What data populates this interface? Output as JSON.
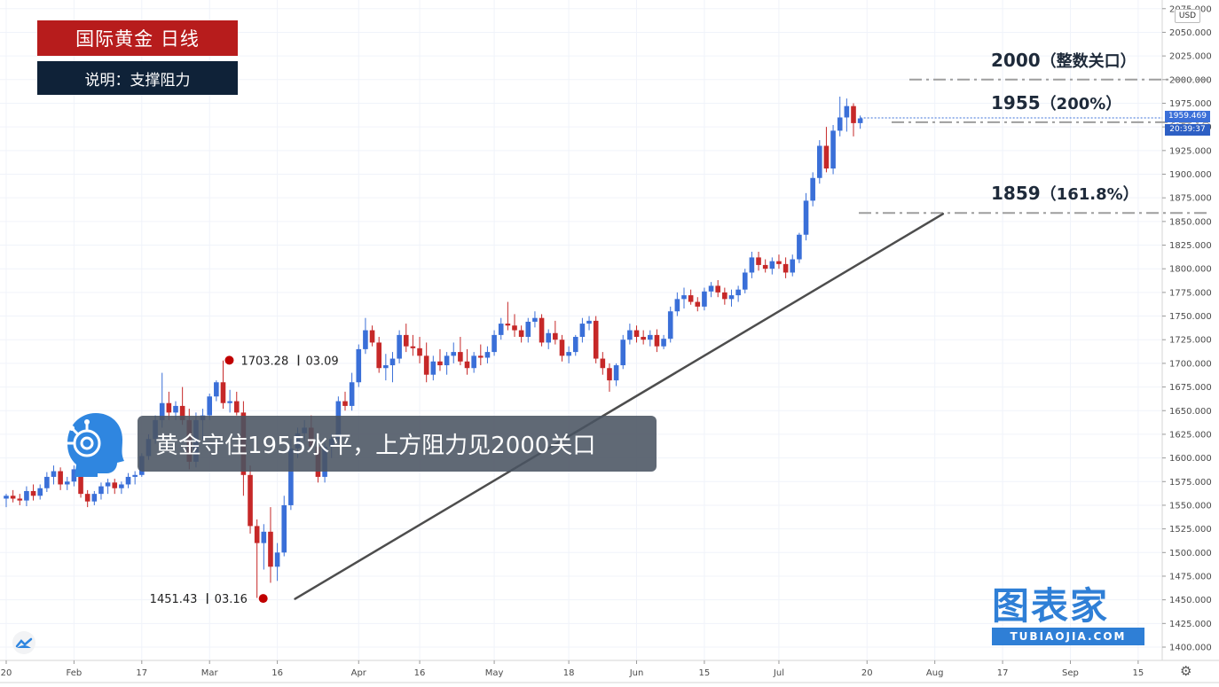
{
  "header": {
    "title": "国际黄金 日线",
    "subtitle": "说明：支撑阻力"
  },
  "caption": "黄金守住1955水平，上方阻力见2000关口",
  "watermark": {
    "brand": "图表家",
    "domain": "TUBIAOJIA.COM"
  },
  "icons": {
    "avatar": "ai-head-icon",
    "platform_logo": "tradingview-logo-icon",
    "settings": "gear-icon"
  },
  "colors": {
    "up": "#3a6fd8",
    "down": "#c62828",
    "trendline": "#4d4d4d",
    "level_line": "#9e9e9e",
    "title_bg": "#b71c1c",
    "subtitle_bg": "#0f2238",
    "price_tag_bg": "#3a6fd8",
    "watermark": "#2f7fd6"
  },
  "chart_data": {
    "type": "candlestick",
    "instrument": "国际黄金",
    "timeframe": "日线",
    "currency": "USD",
    "ylim": [
      1386,
      2080
    ],
    "y_ticks": [
      1400,
      1425,
      1450,
      1475,
      1500,
      1525,
      1550,
      1575,
      1600,
      1625,
      1650,
      1675,
      1700,
      1725,
      1750,
      1775,
      1800,
      1825,
      1850,
      1875,
      1900,
      1925,
      1950,
      1975,
      2000,
      2025,
      2050,
      2075
    ],
    "x_ticks": [
      {
        "label": "20",
        "bar": 0
      },
      {
        "label": "Feb",
        "bar": 10
      },
      {
        "label": "17",
        "bar": 20
      },
      {
        "label": "Mar",
        "bar": 30
      },
      {
        "label": "16",
        "bar": 40
      },
      {
        "label": "Apr",
        "bar": 52
      },
      {
        "label": "16",
        "bar": 61
      },
      {
        "label": "May",
        "bar": 72
      },
      {
        "label": "18",
        "bar": 83
      },
      {
        "label": "Jun",
        "bar": 93
      },
      {
        "label": "15",
        "bar": 103
      },
      {
        "label": "Jul",
        "bar": 114
      },
      {
        "label": "20",
        "bar": 127
      },
      {
        "label": "Aug",
        "bar": 137
      },
      {
        "label": "17",
        "bar": 147
      },
      {
        "label": "Sep",
        "bar": 157
      },
      {
        "label": "15",
        "bar": 167
      }
    ],
    "candles": [
      [
        1557,
        1562,
        1548,
        1560
      ],
      [
        1560,
        1566,
        1553,
        1557
      ],
      [
        1557,
        1562,
        1550,
        1555
      ],
      [
        1555,
        1570,
        1549,
        1565
      ],
      [
        1565,
        1572,
        1555,
        1560
      ],
      [
        1560,
        1572,
        1556,
        1568
      ],
      [
        1568,
        1585,
        1564,
        1580
      ],
      [
        1580,
        1592,
        1572,
        1586
      ],
      [
        1586,
        1590,
        1566,
        1572
      ],
      [
        1572,
        1580,
        1566,
        1575
      ],
      [
        1575,
        1592,
        1570,
        1588
      ],
      [
        1588,
        1592,
        1558,
        1562
      ],
      [
        1562,
        1566,
        1548,
        1554
      ],
      [
        1554,
        1565,
        1550,
        1562
      ],
      [
        1562,
        1574,
        1556,
        1570
      ],
      [
        1570,
        1578,
        1562,
        1574
      ],
      [
        1574,
        1578,
        1562,
        1568
      ],
      [
        1568,
        1575,
        1562,
        1572
      ],
      [
        1572,
        1584,
        1568,
        1580
      ],
      [
        1580,
        1586,
        1572,
        1582
      ],
      [
        1582,
        1605,
        1580,
        1602
      ],
      [
        1602,
        1625,
        1598,
        1620
      ],
      [
        1620,
        1645,
        1615,
        1640
      ],
      [
        1640,
        1690,
        1632,
        1658
      ],
      [
        1658,
        1670,
        1640,
        1648
      ],
      [
        1648,
        1660,
        1640,
        1655
      ],
      [
        1655,
        1675,
        1635,
        1640
      ],
      [
        1640,
        1652,
        1588,
        1596
      ],
      [
        1596,
        1648,
        1590,
        1640
      ],
      [
        1640,
        1652,
        1620,
        1645
      ],
      [
        1645,
        1668,
        1640,
        1665
      ],
      [
        1665,
        1682,
        1660,
        1680
      ],
      [
        1680,
        1703,
        1652,
        1658
      ],
      [
        1658,
        1672,
        1648,
        1660
      ],
      [
        1660,
        1670,
        1645,
        1648
      ],
      [
        1648,
        1660,
        1560,
        1582
      ],
      [
        1582,
        1592,
        1520,
        1528
      ],
      [
        1528,
        1535,
        1452,
        1510
      ],
      [
        1510,
        1530,
        1482,
        1522
      ],
      [
        1522,
        1548,
        1468,
        1485
      ],
      [
        1485,
        1510,
        1470,
        1500
      ],
      [
        1500,
        1560,
        1496,
        1550
      ],
      [
        1550,
        1620,
        1545,
        1610
      ],
      [
        1610,
        1632,
        1600,
        1626
      ],
      [
        1626,
        1640,
        1618,
        1632
      ],
      [
        1632,
        1645,
        1608,
        1612
      ],
      [
        1612,
        1625,
        1574,
        1580
      ],
      [
        1580,
        1616,
        1574,
        1612
      ],
      [
        1612,
        1625,
        1600,
        1620
      ],
      [
        1620,
        1665,
        1615,
        1660
      ],
      [
        1660,
        1670,
        1650,
        1655
      ],
      [
        1655,
        1690,
        1650,
        1680
      ],
      [
        1680,
        1720,
        1675,
        1715
      ],
      [
        1715,
        1748,
        1710,
        1735
      ],
      [
        1735,
        1740,
        1718,
        1722
      ],
      [
        1722,
        1728,
        1690,
        1695
      ],
      [
        1695,
        1710,
        1682,
        1698
      ],
      [
        1698,
        1712,
        1680,
        1705
      ],
      [
        1705,
        1735,
        1700,
        1730
      ],
      [
        1730,
        1742,
        1712,
        1718
      ],
      [
        1718,
        1730,
        1708,
        1716
      ],
      [
        1716,
        1728,
        1700,
        1708
      ],
      [
        1708,
        1722,
        1680,
        1688
      ],
      [
        1688,
        1708,
        1682,
        1702
      ],
      [
        1702,
        1715,
        1692,
        1698
      ],
      [
        1698,
        1712,
        1688,
        1708
      ],
      [
        1708,
        1722,
        1700,
        1712
      ],
      [
        1712,
        1728,
        1698,
        1702
      ],
      [
        1702,
        1715,
        1688,
        1695
      ],
      [
        1695,
        1712,
        1690,
        1708
      ],
      [
        1708,
        1720,
        1698,
        1706
      ],
      [
        1706,
        1718,
        1700,
        1712
      ],
      [
        1712,
        1735,
        1708,
        1730
      ],
      [
        1730,
        1748,
        1725,
        1742
      ],
      [
        1742,
        1765,
        1735,
        1740
      ],
      [
        1740,
        1752,
        1728,
        1735
      ],
      [
        1735,
        1740,
        1722,
        1728
      ],
      [
        1728,
        1748,
        1722,
        1744
      ],
      [
        1744,
        1755,
        1738,
        1748
      ],
      [
        1748,
        1752,
        1718,
        1722
      ],
      [
        1722,
        1736,
        1715,
        1732
      ],
      [
        1732,
        1745,
        1720,
        1725
      ],
      [
        1725,
        1730,
        1702,
        1708
      ],
      [
        1708,
        1718,
        1700,
        1712
      ],
      [
        1712,
        1730,
        1708,
        1728
      ],
      [
        1728,
        1748,
        1722,
        1742
      ],
      [
        1742,
        1750,
        1735,
        1745
      ],
      [
        1745,
        1750,
        1700,
        1705
      ],
      [
        1705,
        1712,
        1688,
        1695
      ],
      [
        1695,
        1700,
        1670,
        1682
      ],
      [
        1682,
        1700,
        1676,
        1698
      ],
      [
        1698,
        1730,
        1694,
        1725
      ],
      [
        1725,
        1742,
        1720,
        1735
      ],
      [
        1735,
        1740,
        1722,
        1728
      ],
      [
        1728,
        1735,
        1720,
        1725
      ],
      [
        1725,
        1735,
        1718,
        1730
      ],
      [
        1730,
        1736,
        1712,
        1718
      ],
      [
        1718,
        1730,
        1715,
        1726
      ],
      [
        1726,
        1760,
        1722,
        1755
      ],
      [
        1755,
        1775,
        1750,
        1768
      ],
      [
        1768,
        1780,
        1758,
        1772
      ],
      [
        1772,
        1778,
        1762,
        1765
      ],
      [
        1765,
        1770,
        1755,
        1760
      ],
      [
        1760,
        1780,
        1756,
        1776
      ],
      [
        1776,
        1786,
        1770,
        1782
      ],
      [
        1782,
        1788,
        1770,
        1775
      ],
      [
        1775,
        1780,
        1762,
        1768
      ],
      [
        1768,
        1778,
        1760,
        1772
      ],
      [
        1772,
        1782,
        1765,
        1778
      ],
      [
        1778,
        1800,
        1774,
        1796
      ],
      [
        1796,
        1818,
        1790,
        1812
      ],
      [
        1812,
        1818,
        1798,
        1804
      ],
      [
        1804,
        1810,
        1796,
        1800
      ],
      [
        1800,
        1812,
        1794,
        1808
      ],
      [
        1808,
        1815,
        1800,
        1805
      ],
      [
        1805,
        1812,
        1790,
        1796
      ],
      [
        1796,
        1815,
        1792,
        1810
      ],
      [
        1810,
        1838,
        1806,
        1836
      ],
      [
        1836,
        1880,
        1830,
        1872
      ],
      [
        1872,
        1902,
        1866,
        1896
      ],
      [
        1896,
        1936,
        1890,
        1930
      ],
      [
        1930,
        1950,
        1902,
        1906
      ],
      [
        1906,
        1952,
        1900,
        1946
      ],
      [
        1946,
        1982,
        1940,
        1960
      ],
      [
        1960,
        1980,
        1945,
        1972
      ],
      [
        1972,
        1975,
        1940,
        1954
      ],
      [
        1954,
        1962,
        1948,
        1959
      ]
    ],
    "highlights": [
      {
        "price": 1703.28,
        "label": "1703.28",
        "date": "03.09",
        "bar": 32
      },
      {
        "price": 1451.43,
        "label": "1451.43",
        "date": "03.16",
        "bar": 37
      }
    ],
    "levels": [
      {
        "price": 2000,
        "label": "2000",
        "note": "（整数关口）"
      },
      {
        "price": 1955,
        "label": "1955",
        "note": "（200%）"
      },
      {
        "price": 1859,
        "label": "1859",
        "note": "（161.8%）"
      }
    ],
    "trendline": {
      "from": {
        "bar": 40,
        "price": 1451
      },
      "to": {
        "bar": 131,
        "price": 1858
      }
    },
    "last_price": "1959.469",
    "countdown": "20:39:37"
  }
}
